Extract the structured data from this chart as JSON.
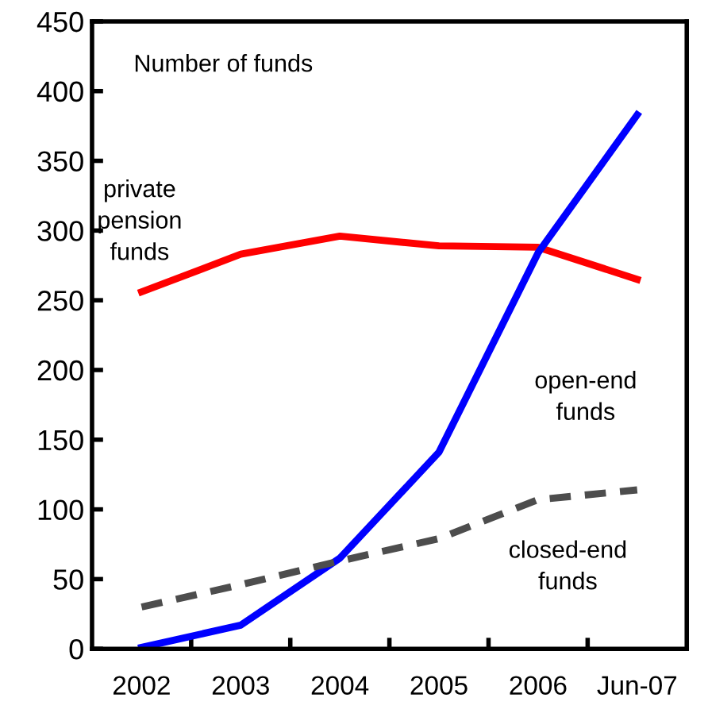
{
  "chart_data": {
    "type": "line",
    "categories": [
      "2002",
      "2003",
      "2004",
      "2005",
      "2006",
      "Jun-07"
    ],
    "series": [
      {
        "name": "private pension funds",
        "color": "#ff0000",
        "values": [
          256,
          283,
          296,
          289,
          288,
          265
        ]
      },
      {
        "name": "open-end funds",
        "color": "#0000ff",
        "values": [
          1,
          17,
          65,
          141,
          284,
          383
        ]
      },
      {
        "name": "closed-end funds",
        "color": "#4d4d4d",
        "values": [
          30,
          46,
          63,
          79,
          107,
          114
        ],
        "line_style": "dashed"
      }
    ],
    "ylim": [
      0,
      450
    ],
    "yticks": [
      0,
      50,
      100,
      150,
      200,
      250,
      300,
      350,
      400,
      450
    ],
    "annotations": [
      "Number of funds"
    ],
    "grid": false,
    "legend": false,
    "marker": "none",
    "line_style": "solid"
  }
}
